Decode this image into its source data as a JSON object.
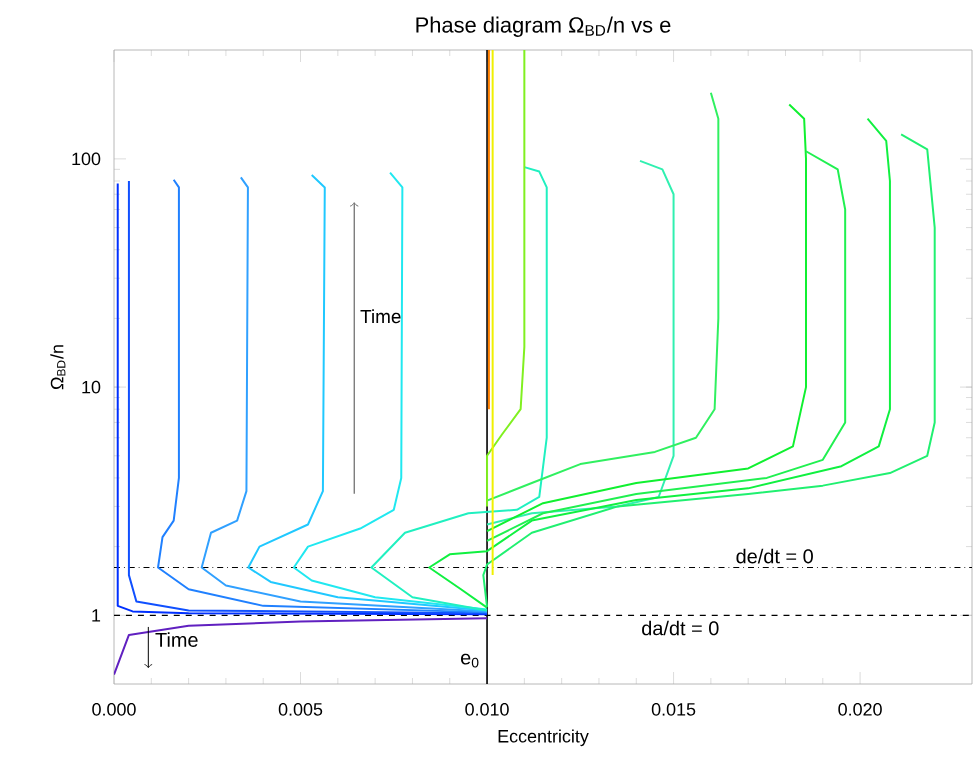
{
  "chart_data": {
    "type": "line",
    "title": "Phase diagram Ω$_{BD}$/n vs e",
    "xlabel": "Eccentricity",
    "ylabel": "Ω$_{BD}$/n",
    "log": "y",
    "grid": false,
    "marker": "none",
    "line_style": "solid",
    "xlim": [
      0,
      0.023
    ],
    "ylim": [
      0.5,
      300
    ],
    "xticks": [
      {
        "value": 0,
        "label": "0.000"
      },
      {
        "value": 0.005,
        "label": "0.005"
      },
      {
        "value": 0.01,
        "label": "0.010"
      },
      {
        "value": 0.015,
        "label": "0.015"
      },
      {
        "value": 0.02,
        "label": "0.020"
      }
    ],
    "yticks": [
      1,
      10,
      100
    ],
    "ref_lines": [
      {
        "axis": "y",
        "value": 1.62,
        "line_style": "dashdot",
        "color": "#000000"
      },
      {
        "axis": "y",
        "value": 1,
        "line_style": "dashed",
        "color": "#000000"
      },
      {
        "axis": "x",
        "value": 0.01,
        "label": "e$_{0}$",
        "line_style": "solid",
        "color": "#000000"
      }
    ],
    "annotations": [
      "Time",
      "Time",
      "de/dt = 0",
      "da/dt = 0"
    ],
    "series": [
      {
        "color": "#6020c0",
        "x": [
          0,
          0.0004,
          0.002,
          0.005,
          0.01
        ],
        "values": [
          0.55,
          0.82,
          0.9,
          0.94,
          0.97
        ]
      },
      {
        "color": "#0030ff",
        "x": [
          0.01,
          0.002,
          0.0005,
          0.0001,
          0.0001,
          0.0001
        ],
        "values": [
          1.01,
          1.02,
          1.04,
          1.1,
          3,
          78
        ]
      },
      {
        "color": "#1050ff",
        "x": [
          0.01,
          0.002,
          0.0006,
          0.0004,
          0.0004,
          0.0004
        ],
        "values": [
          1.02,
          1.05,
          1.15,
          1.5,
          10,
          80
        ]
      },
      {
        "color": "#2080ff",
        "x": [
          0.01,
          0.004,
          0.002,
          0.00118,
          0.0013,
          0.0016,
          0.00174,
          0.00174,
          0.0016
        ],
        "values": [
          1.03,
          1.1,
          1.3,
          1.62,
          2.2,
          2.6,
          4,
          75,
          81
        ]
      },
      {
        "color": "#30a0ff",
        "x": [
          0.01,
          0.005,
          0.003,
          0.00235,
          0.0026,
          0.0033,
          0.00355,
          0.00359,
          0.0034
        ],
        "values": [
          1.04,
          1.15,
          1.35,
          1.62,
          2.3,
          2.6,
          3.5,
          75,
          83
        ]
      },
      {
        "color": "#20c8ff",
        "x": [
          0.01,
          0.006,
          0.0042,
          0.0036,
          0.0039,
          0.0052,
          0.0056,
          0.00565,
          0.0053
        ],
        "values": [
          1.05,
          1.2,
          1.4,
          1.62,
          2.0,
          2.5,
          3.5,
          75,
          85
        ]
      },
      {
        "color": "#20e8f0",
        "x": [
          0.01,
          0.007,
          0.0053,
          0.00482,
          0.0052,
          0.0066,
          0.0075,
          0.0077,
          0.00773,
          0.0074
        ],
        "values": [
          1.06,
          1.2,
          1.42,
          1.62,
          2.0,
          2.4,
          2.9,
          4,
          75,
          87
        ]
      },
      {
        "color": "#20f0c0",
        "x": [
          0.01,
          0.008,
          0.0069,
          0.0078,
          0.0095,
          0.0108,
          0.0114,
          0.0116,
          0.0116,
          0.0114,
          0.011
        ],
        "values": [
          1.05,
          1.2,
          1.62,
          2.3,
          2.8,
          2.9,
          3.3,
          6,
          75,
          88,
          92
        ]
      },
      {
        "color": "#30f0b0",
        "x": [
          0.01,
          0.0112,
          0.0135,
          0.0146,
          0.015,
          0.015,
          0.0147,
          0.0141
        ],
        "values": [
          2.5,
          2.8,
          3.0,
          3.3,
          5,
          70,
          90,
          98
        ]
      },
      {
        "color": "#30f060",
        "x": [
          0.01,
          0.0112,
          0.0125,
          0.0145,
          0.0156,
          0.0161,
          0.0162,
          0.0162,
          0.016
        ],
        "values": [
          3.18,
          3.8,
          4.6,
          5.2,
          6.0,
          8,
          20,
          150,
          195
        ]
      },
      {
        "color": "#10f030",
        "x": [
          0.01,
          0.0115,
          0.014,
          0.017,
          0.0182,
          0.01855,
          0.01855,
          0.0185,
          0.0181
        ],
        "values": [
          2.34,
          3.1,
          3.8,
          4.4,
          5.5,
          10,
          100,
          150,
          173
        ]
      },
      {
        "color": "#20f050",
        "x": [
          0.01,
          0.0115,
          0.014,
          0.0175,
          0.019,
          0.0196,
          0.0196,
          0.0194,
          0.01855
        ],
        "values": [
          2.12,
          2.8,
          3.4,
          4.0,
          4.8,
          7,
          60,
          90,
          108
        ]
      },
      {
        "color": "#10f040",
        "x": [
          0.01,
          0.0093,
          0.00845,
          0.009,
          0.01,
          0.0112,
          0.014,
          0.017,
          0.0195,
          0.0205,
          0.0208,
          0.0208,
          0.0207,
          0.0202
        ],
        "values": [
          1.08,
          1.3,
          1.62,
          1.85,
          1.91,
          2.6,
          3.2,
          3.6,
          4.5,
          5.5,
          8,
          80,
          120,
          150
        ]
      },
      {
        "color": "#20f070",
        "x": [
          0.01,
          0.0099,
          0.01,
          0.0112,
          0.0135,
          0.017,
          0.019,
          0.0208,
          0.0218,
          0.022,
          0.022,
          0.0218,
          0.0211
        ],
        "values": [
          1.09,
          1.5,
          1.67,
          2.3,
          3.0,
          3.4,
          3.7,
          4.2,
          5.0,
          7,
          50,
          110,
          128
        ]
      },
      {
        "color": "#80f020",
        "x": [
          0.01,
          0.01,
          0.0104,
          0.0109,
          0.011,
          0.011
        ],
        "values": [
          3.0,
          5,
          6.2,
          8,
          15,
          300
        ]
      },
      {
        "color": "#f0f000",
        "x": [
          0.01015,
          0.01015
        ],
        "values": [
          1.5,
          300
        ]
      },
      {
        "color": "#ff8000",
        "x": [
          0.01005,
          0.01005
        ],
        "values": [
          8,
          300
        ]
      }
    ]
  }
}
